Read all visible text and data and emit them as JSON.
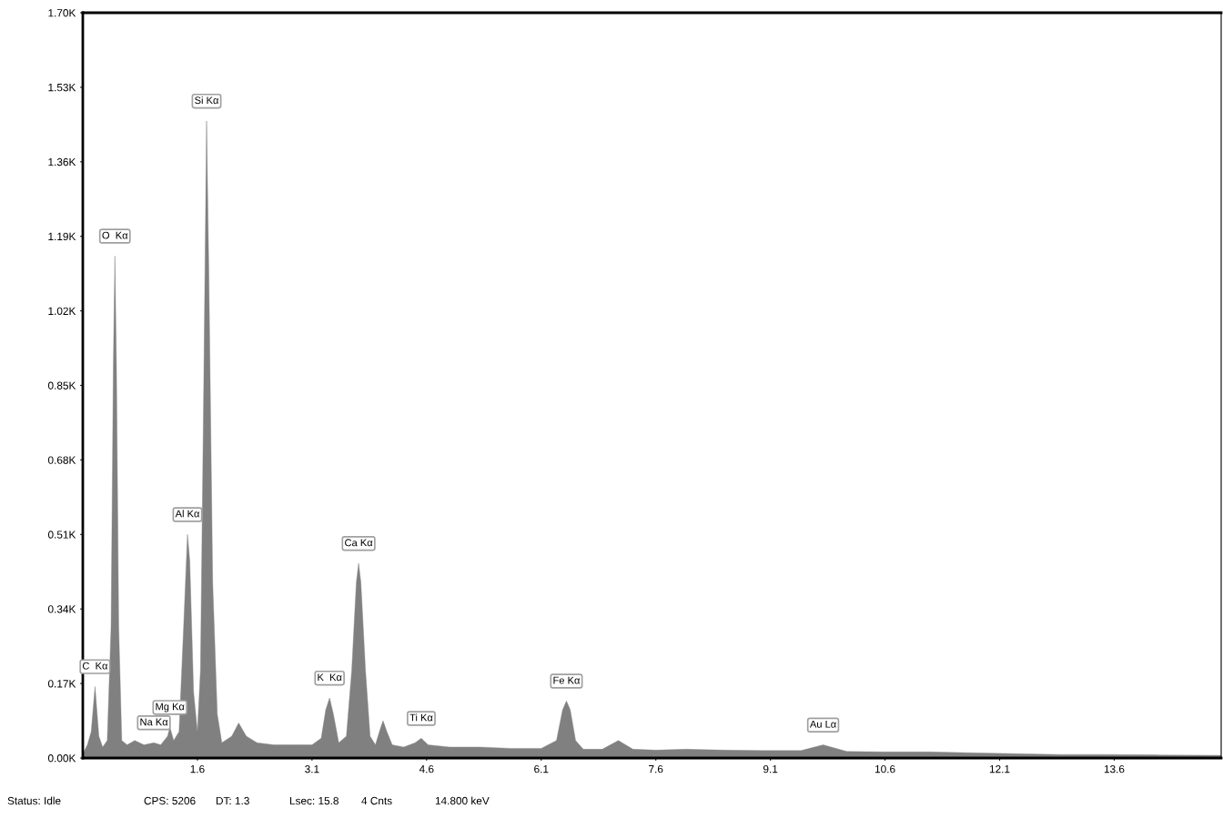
{
  "chart_data": {
    "type": "area",
    "color": "#808080",
    "x": [
      0.1,
      0.16,
      0.21,
      0.26,
      0.31,
      0.36,
      0.42,
      0.47,
      0.5,
      0.52,
      0.54,
      0.57,
      0.61,
      0.68,
      0.78,
      0.9,
      1.03,
      1.12,
      1.21,
      1.24,
      1.29,
      1.36,
      1.42,
      1.47,
      1.5,
      1.55,
      1.6,
      1.64,
      1.68,
      1.72,
      1.75,
      1.8,
      1.86,
      1.92,
      2.05,
      2.14,
      2.24,
      2.38,
      2.6,
      2.85,
      3.1,
      3.22,
      3.28,
      3.33,
      3.38,
      3.45,
      3.55,
      3.62,
      3.68,
      3.71,
      3.74,
      3.8,
      3.86,
      3.93,
      4.0,
      4.03,
      4.08,
      4.15,
      4.3,
      4.45,
      4.53,
      4.62,
      4.9,
      5.3,
      5.7,
      6.1,
      6.3,
      6.38,
      6.43,
      6.48,
      6.55,
      6.65,
      6.9,
      7.11,
      7.3,
      7.6,
      8.0,
      8.5,
      9.0,
      9.5,
      9.79,
      10.1,
      10.6,
      11.2,
      11.7,
      12.3,
      12.9,
      13.5,
      14.2,
      15.0
    ],
    "values": [
      0.01,
      0.03,
      0.06,
      0.163,
      0.05,
      0.025,
      0.04,
      0.3,
      0.9,
      1.145,
      0.9,
      0.3,
      0.04,
      0.03,
      0.04,
      0.03,
      0.035,
      0.03,
      0.05,
      0.07,
      0.04,
      0.06,
      0.3,
      0.51,
      0.45,
      0.15,
      0.06,
      0.2,
      0.8,
      1.453,
      1.1,
      0.4,
      0.1,
      0.035,
      0.05,
      0.08,
      0.05,
      0.035,
      0.03,
      0.03,
      0.03,
      0.045,
      0.11,
      0.137,
      0.1,
      0.035,
      0.05,
      0.2,
      0.4,
      0.444,
      0.4,
      0.2,
      0.05,
      0.03,
      0.07,
      0.085,
      0.06,
      0.03,
      0.025,
      0.035,
      0.045,
      0.03,
      0.025,
      0.025,
      0.022,
      0.022,
      0.04,
      0.11,
      0.13,
      0.11,
      0.04,
      0.02,
      0.02,
      0.04,
      0.02,
      0.018,
      0.02,
      0.018,
      0.017,
      0.017,
      0.03,
      0.015,
      0.014,
      0.014,
      0.012,
      0.01,
      0.008,
      0.008,
      0.007,
      0.006
    ],
    "xlim": [
      0.1,
      15.0
    ],
    "xticks": [
      1.6,
      3.1,
      4.6,
      6.1,
      7.6,
      9.1,
      10.6,
      12.1,
      13.6
    ],
    "ylim": [
      0,
      1.7
    ],
    "yticks": [
      {
        "value": 0,
        "label": "0.00K"
      },
      {
        "value": 0.17,
        "label": "0.17K"
      },
      {
        "value": 0.34,
        "label": "0.34K"
      },
      {
        "value": 0.51,
        "label": "0.51K"
      },
      {
        "value": 0.68,
        "label": "0.68K"
      },
      {
        "value": 0.85,
        "label": "0.85K"
      },
      {
        "value": 1.02,
        "label": "1.02K"
      },
      {
        "value": 1.19,
        "label": "1.19K"
      },
      {
        "value": 1.36,
        "label": "1.36K"
      },
      {
        "value": 1.53,
        "label": "1.53K"
      },
      {
        "value": 1.7,
        "label": "1.70K"
      }
    ],
    "annotations": [
      {
        "text": "C  Kα",
        "x": 0.26,
        "y": 0.163
      },
      {
        "text": "O  Kα",
        "x": 0.52,
        "y": 1.145
      },
      {
        "text": "Na Kα",
        "x": 1.03,
        "y": 0.035
      },
      {
        "text": "Mg Kα",
        "x": 1.24,
        "y": 0.07
      },
      {
        "text": "Al Kα",
        "x": 1.47,
        "y": 0.51
      },
      {
        "text": "Si Kα",
        "x": 1.72,
        "y": 1.453
      },
      {
        "text": "K  Kα",
        "x": 3.33,
        "y": 0.137
      },
      {
        "text": "Ca Kα",
        "x": 3.71,
        "y": 0.444
      },
      {
        "text": "Ti Kα",
        "x": 4.53,
        "y": 0.045
      },
      {
        "text": "Fe Kα",
        "x": 6.43,
        "y": 0.13
      },
      {
        "text": "Au Lα",
        "x": 9.79,
        "y": 0.03
      },
      "Status: Idle",
      "CPS: 5206",
      "DT: 1.3",
      "Lsec: 15.8",
      "4 Cnts",
      "14.800 keV"
    ],
    "grid": false,
    "legend": false
  }
}
